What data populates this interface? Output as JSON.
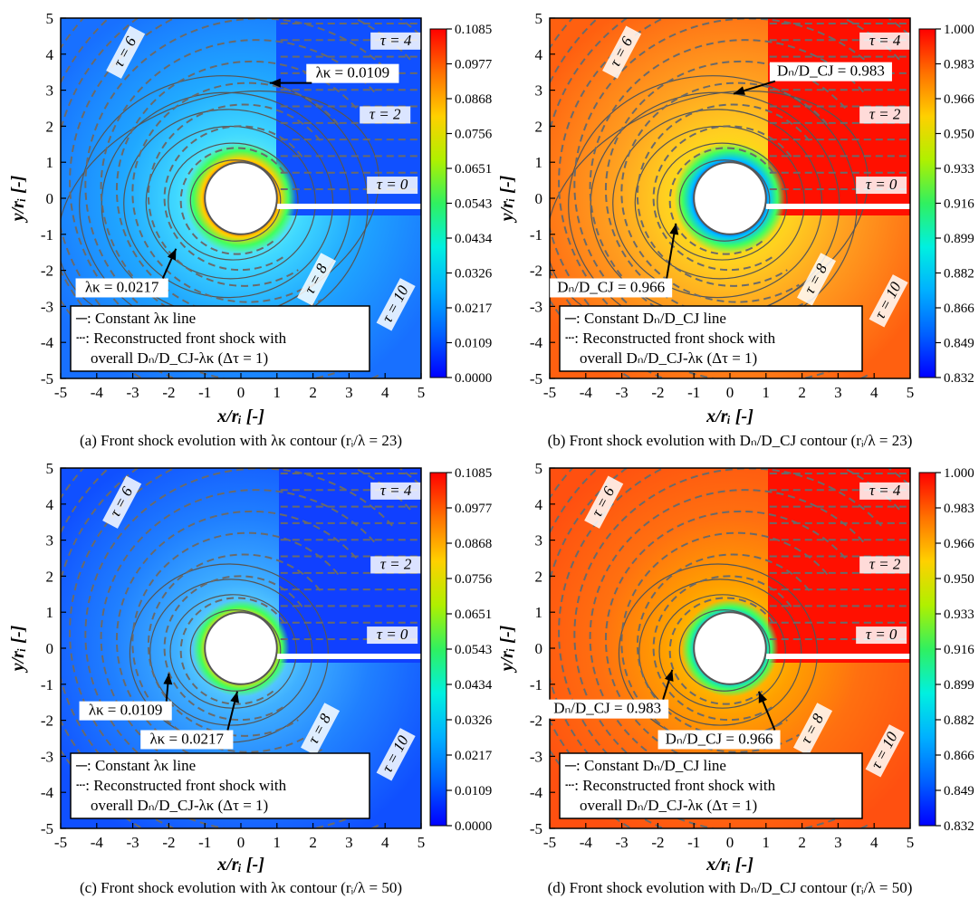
{
  "chart_data": [
    {
      "type": "heatmap",
      "id": "a",
      "caption": "(a) Front shock evolution with λκ contour (rᵢ/λ = 23)",
      "xlabel": "x/rᵢ [-]",
      "ylabel": "y/rᵢ [-]",
      "xlim": [
        -5,
        5
      ],
      "ylim": [
        -5,
        5
      ],
      "xticks": [
        "-5",
        "-4",
        "-3",
        "-2",
        "-1",
        "0",
        "1",
        "2",
        "3",
        "4",
        "5"
      ],
      "yticks": [
        "-5",
        "-4",
        "-3",
        "-2",
        "-1",
        "0",
        "1",
        "2",
        "3",
        "4",
        "5"
      ],
      "colormap": "jet",
      "colorbar_ticks": [
        "0.1085",
        "0.0977",
        "0.0868",
        "0.0756",
        "0.0651",
        "0.0543",
        "0.0434",
        "0.0326",
        "0.0217",
        "0.0109",
        "0.0000"
      ],
      "tau_labels": [
        {
          "text": "τ = 0",
          "x": 4.2,
          "y": 0.25
        },
        {
          "text": "τ = 2",
          "x": 4.0,
          "y": 2.2
        },
        {
          "text": "τ = 4",
          "x": 4.3,
          "y": 4.25
        },
        {
          "text": "τ = 6",
          "x": -3.1,
          "y": 4.0
        },
        {
          "text": "τ = 8",
          "x": 2.2,
          "y": -2.3
        },
        {
          "text": "τ = 10",
          "x": 4.4,
          "y": -3.0
        }
      ],
      "annotations": [
        {
          "text": "λκ = 0.0109",
          "tx": 3.1,
          "ty": 3.35,
          "ax": 0.8,
          "ay": 3.2
        },
        {
          "text": "λκ = 0.0217",
          "tx": -3.3,
          "ty": -2.6,
          "ax": -1.8,
          "ay": -1.4
        }
      ],
      "legend": [
        "─: Constant λκ line",
        "┄: Reconstructed front shock with",
        "overall Dₙ/D_CJ-λκ (Δτ = 1)"
      ]
    },
    {
      "type": "heatmap",
      "id": "b",
      "caption": "(b) Front shock evolution with Dₙ/D_CJ contour (rᵢ/λ = 23)",
      "xlabel": "x/rᵢ [-]",
      "ylabel": "y/rᵢ [-]",
      "xlim": [
        -5,
        5
      ],
      "ylim": [
        -5,
        5
      ],
      "xticks": [
        "-5",
        "-4",
        "-3",
        "-2",
        "-1",
        "0",
        "1",
        "2",
        "3",
        "4",
        "5"
      ],
      "yticks": [
        "-5",
        "-4",
        "-3",
        "-2",
        "-1",
        "0",
        "1",
        "2",
        "3",
        "4",
        "5"
      ],
      "colormap": "jet",
      "colorbar_ticks": [
        "1.000",
        "0.983",
        "0.966",
        "0.950",
        "0.933",
        "0.916",
        "0.899",
        "0.882",
        "0.866",
        "0.849",
        "0.832"
      ],
      "tau_labels": [
        {
          "text": "τ = 0",
          "x": 4.2,
          "y": 0.25
        },
        {
          "text": "τ = 2",
          "x": 4.3,
          "y": 2.2
        },
        {
          "text": "τ = 4",
          "x": 4.3,
          "y": 4.25
        },
        {
          "text": "τ = 6",
          "x": -2.9,
          "y": 4.0
        },
        {
          "text": "τ = 8",
          "x": 2.5,
          "y": -2.3
        },
        {
          "text": "τ = 10",
          "x": 4.5,
          "y": -2.9
        }
      ],
      "annotations": [
        {
          "text": "Dₙ/D_CJ = 0.983",
          "tx": 2.8,
          "ty": 3.4,
          "ax": 0.1,
          "ay": 2.9
        },
        {
          "text": "Dₙ/D_CJ = 0.966",
          "tx": -3.3,
          "ty": -2.6,
          "ax": -1.5,
          "ay": -0.7
        }
      ],
      "legend": [
        "─: Constant Dₙ/D_CJ line",
        "┄: Reconstructed front shock with",
        "overall Dₙ/D_CJ-λκ (Δτ = 1)"
      ]
    },
    {
      "type": "heatmap",
      "id": "c",
      "caption": "(c) Front shock evolution with λκ contour (rᵢ/λ = 50)",
      "xlabel": "x/rᵢ [-]",
      "ylabel": "y/rᵢ [-]",
      "xlim": [
        -5,
        5
      ],
      "ylim": [
        -5,
        5
      ],
      "xticks": [
        "-5",
        "-4",
        "-3",
        "-2",
        "-1",
        "0",
        "1",
        "2",
        "3",
        "4",
        "5"
      ],
      "yticks": [
        "-5",
        "-4",
        "-3",
        "-2",
        "-1",
        "0",
        "1",
        "2",
        "3",
        "4",
        "5"
      ],
      "colormap": "jet",
      "colorbar_ticks": [
        "0.1085",
        "0.0977",
        "0.0868",
        "0.0756",
        "0.0651",
        "0.0543",
        "0.0434",
        "0.0326",
        "0.0217",
        "0.0109",
        "0.0000"
      ],
      "tau_labels": [
        {
          "text": "τ = 0",
          "x": 4.2,
          "y": 0.25
        },
        {
          "text": "τ = 2",
          "x": 4.3,
          "y": 2.2
        },
        {
          "text": "τ = 4",
          "x": 4.3,
          "y": 4.25
        },
        {
          "text": "τ = 6",
          "x": -3.2,
          "y": 4.0
        },
        {
          "text": "τ = 8",
          "x": 2.3,
          "y": -2.3
        },
        {
          "text": "τ = 10",
          "x": 4.4,
          "y": -3.0
        }
      ],
      "annotations": [
        {
          "text": "λκ = 0.0109",
          "tx": -3.2,
          "ty": -1.85,
          "ax": -2.0,
          "ay": -0.7
        },
        {
          "text": "λκ = 0.0217",
          "tx": -1.5,
          "ty": -2.65,
          "ax": -0.1,
          "ay": -1.2
        }
      ],
      "legend": [
        "─: Constant λκ line",
        "┄: Reconstructed front shock with",
        "overall Dₙ/D_CJ-λκ (Δτ = 1)"
      ]
    },
    {
      "type": "heatmap",
      "id": "d",
      "caption": "(d) Front shock evolution with Dₙ/D_CJ contour (rᵢ/λ = 50)",
      "xlabel": "x/rᵢ [-]",
      "ylabel": "y/rᵢ [-]",
      "xlim": [
        -5,
        5
      ],
      "ylim": [
        -5,
        5
      ],
      "xticks": [
        "-5",
        "-4",
        "-3",
        "-2",
        "-1",
        "0",
        "1",
        "2",
        "3",
        "4",
        "5"
      ],
      "yticks": [
        "-5",
        "-4",
        "-3",
        "-2",
        "-1",
        "0",
        "1",
        "2",
        "3",
        "4",
        "5"
      ],
      "colormap": "jet",
      "colorbar_ticks": [
        "1.000",
        "0.983",
        "0.966",
        "0.950",
        "0.933",
        "0.916",
        "0.899",
        "0.882",
        "0.866",
        "0.849",
        "0.832"
      ],
      "tau_labels": [
        {
          "text": "τ = 0",
          "x": 4.2,
          "y": 0.25
        },
        {
          "text": "τ = 2",
          "x": 4.3,
          "y": 2.2
        },
        {
          "text": "τ = 4",
          "x": 4.3,
          "y": 4.25
        },
        {
          "text": "τ = 6",
          "x": -3.4,
          "y": 4.0
        },
        {
          "text": "τ = 8",
          "x": 2.4,
          "y": -2.3
        },
        {
          "text": "τ = 10",
          "x": 4.4,
          "y": -2.9
        }
      ],
      "annotations": [
        {
          "text": "Dₙ/D_CJ = 0.983",
          "tx": -3.4,
          "ty": -1.8,
          "ax": -1.6,
          "ay": -0.6
        },
        {
          "text": "Dₙ/D_CJ = 0.966",
          "tx": -0.3,
          "ty": -2.65,
          "ax": 0.8,
          "ay": -1.2
        }
      ],
      "legend": [
        "─: Constant Dₙ/D_CJ line",
        "┄: Reconstructed front shock with",
        "overall Dₙ/D_CJ-λκ (Δτ = 1)"
      ]
    }
  ]
}
